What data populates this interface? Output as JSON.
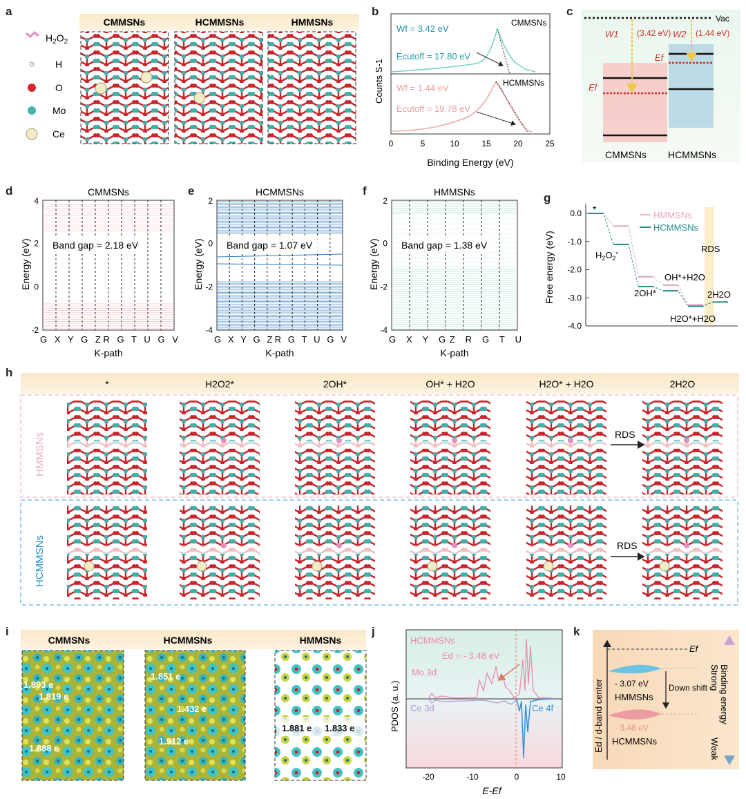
{
  "panel_letters": [
    "a",
    "b",
    "c",
    "d",
    "e",
    "f",
    "g",
    "h",
    "i",
    "j",
    "k"
  ],
  "panel_a": {
    "headers": [
      "CMMSNs",
      "HCMMSNs",
      "HMMSNs"
    ],
    "legend": [
      {
        "label": "H2O2",
        "color": "#e58fc0"
      },
      {
        "label": "H",
        "color": "#f4f4f4"
      },
      {
        "label": "O",
        "color": "#d8262b"
      },
      {
        "label": "Mo",
        "color": "#47b3ac"
      },
      {
        "label": "Ce",
        "color": "#f1ecc8"
      }
    ]
  },
  "panel_b": {
    "ylabel": "Counts S-1",
    "xlabel": "Binding Energy (eV)",
    "ticks": [
      "0",
      "5",
      "10",
      "15",
      "20",
      "25"
    ],
    "top": {
      "name": "CMMSNs",
      "wf": "Wf = 3.42 eV",
      "cutoff": "Ecutoff = 17.80 eV",
      "color": "#79d2c8"
    },
    "bottom": {
      "name": "HCMMSNs",
      "wf": "Wf = 1.44 eV",
      "cutoff": "Ecutoff = 19.78 eV",
      "color": "#f0a8a8"
    }
  },
  "panel_c": {
    "vac": "Vac",
    "w1": "W1",
    "w1_val": "(3.42 eV)",
    "w2": "W2",
    "w2_val": "(1.44 eV)",
    "ef": "Ef",
    "labels": [
      "CMMSNs",
      "HCMMSNs"
    ]
  },
  "bands": [
    {
      "title": "CMMSNs",
      "gap": "Band gap = 2.18 eV",
      "yticks": [
        "4",
        "2",
        "0",
        "-2"
      ],
      "kpath": "G X Y G ZR G T U G  V",
      "color": "#f2b5bd"
    },
    {
      "title": "HCMMSNs",
      "gap": "Band gap = 1.07 eV",
      "yticks": [
        "2",
        "0",
        "-2",
        "-4"
      ],
      "kpath": "G X Y G ZR G T U G  V",
      "color": "#2a7dc4"
    },
    {
      "title": "HMMSNs",
      "gap": "Band gap = 1.38 eV",
      "yticks": [
        "2",
        "0",
        "-2",
        "-4"
      ],
      "kpath": "G X Y  GZ    R    G  T U",
      "color": "#9fdcd3"
    }
  ],
  "band_axis": {
    "ylabel": "Energy (eV)",
    "xlabel": "K-path"
  },
  "panel_g": {
    "ylabel": "Free energy (eV)",
    "yticks": [
      "0.0",
      "-1.0",
      "-2.0",
      "-3.0",
      "-4.0"
    ],
    "legend": [
      "HMMSNs",
      "HCMMSNs"
    ],
    "rds": "RDS",
    "annotations": [
      "*",
      "H2O2*",
      "OH*+H2O",
      "2OH*",
      "2H2O",
      "H2O*+H2O"
    ]
  },
  "chart_data": {
    "type": "line",
    "title": "",
    "ylabel": "Free energy (eV)",
    "ylim": [
      -4.0,
      0.5
    ],
    "categories": [
      "*",
      "H2O2*",
      "2OH*",
      "OH*+H2O",
      "H2O*+H2O",
      "2H2O"
    ],
    "series": [
      {
        "name": "HMMSNs",
        "values": [
          0.0,
          -0.45,
          -2.25,
          -2.55,
          -3.25,
          -3.15
        ]
      },
      {
        "name": "HCMMSNs",
        "values": [
          0.0,
          -1.1,
          -2.6,
          -2.75,
          -3.3,
          -3.15
        ]
      }
    ]
  },
  "panel_h": {
    "steps": [
      "*",
      "H2O2*",
      "2OH*",
      "OH* + H2O",
      "H2O* + H2O",
      "2H2O"
    ],
    "rows": [
      "HMMSNs",
      "HCMMSNs"
    ],
    "rds": "RDS"
  },
  "panel_i": {
    "headers": [
      "CMMSNs",
      "HCMMSNs",
      "HMMSNs"
    ],
    "charges": [
      [
        "1.893 e",
        "1.819 e",
        "1.888 e"
      ],
      [
        "1.851 e",
        "1.432 e",
        "1.912 e"
      ],
      [
        "1.881 e",
        "1.833 e"
      ]
    ]
  },
  "panel_j": {
    "ylabel": "PDOS (a. u.)",
    "xlabel": "E-Ef",
    "ticks": [
      "-20",
      "-10",
      "0",
      "10"
    ],
    "labels": [
      "HCMMSNs",
      "Mo 3d",
      "Ce 3d",
      "Ce 4f"
    ],
    "ed": "Ed = - 3.48 eV"
  },
  "panel_k": {
    "ylabel": "Ed / d-band center",
    "ef": "Ef",
    "strong": "Strong",
    "weak": "Weak",
    "binding": "Binding energy",
    "shift": "Down shift",
    "top_val": "- 3.07 eV",
    "top_name": "HMMSNs",
    "bot_val": "- 3.48 eV",
    "bot_name": "HCMMSNs"
  }
}
